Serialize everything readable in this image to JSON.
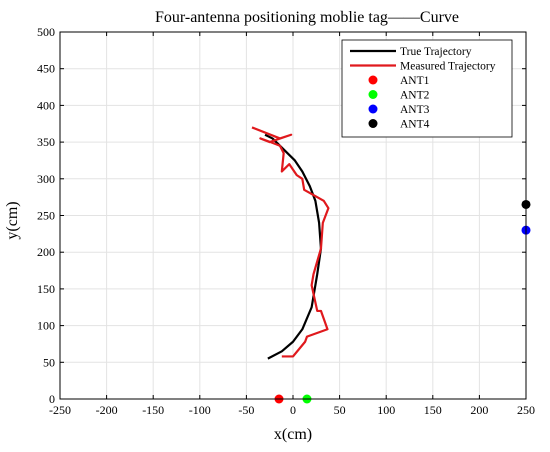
{
  "chart_data": {
    "type": "line",
    "title": "Four-antenna positioning moblie tag——Curve",
    "xlabel": "x(cm)",
    "ylabel": "y(cm)",
    "xlim": [
      -250,
      250
    ],
    "ylim": [
      0,
      500
    ],
    "x_ticks": [
      -250,
      -200,
      -150,
      -100,
      -50,
      0,
      50,
      100,
      150,
      200,
      250
    ],
    "y_ticks": [
      0,
      50,
      100,
      150,
      200,
      250,
      300,
      350,
      400,
      450,
      500
    ],
    "grid": true,
    "legend_position": "top-right",
    "series": [
      {
        "name": "True Trajectory",
        "color": "#000000",
        "points": [
          [
            -27,
            55
          ],
          [
            -12,
            65
          ],
          [
            0,
            78
          ],
          [
            10,
            95
          ],
          [
            20,
            125
          ],
          [
            26,
            170
          ],
          [
            30,
            205
          ],
          [
            28,
            240
          ],
          [
            24,
            270
          ],
          [
            18,
            290
          ],
          [
            10,
            310
          ],
          [
            2,
            325
          ],
          [
            -10,
            340
          ],
          [
            -22,
            355
          ],
          [
            -30,
            360
          ]
        ]
      },
      {
        "name": "Measured Trajectory",
        "color": "#e0191d",
        "points": [
          [
            -12,
            58
          ],
          [
            0,
            58
          ],
          [
            13,
            78
          ],
          [
            15,
            85
          ],
          [
            37,
            95
          ],
          [
            30,
            120
          ],
          [
            26,
            120
          ],
          [
            20,
            155
          ],
          [
            22,
            170
          ],
          [
            30,
            205
          ],
          [
            32,
            240
          ],
          [
            38,
            260
          ],
          [
            33,
            270
          ],
          [
            12,
            285
          ],
          [
            10,
            300
          ],
          [
            4,
            305
          ],
          [
            -4,
            320
          ],
          [
            -12,
            310
          ],
          [
            -10,
            335
          ],
          [
            -14,
            345
          ],
          [
            -24,
            350
          ],
          [
            -35,
            355
          ],
          [
            -25,
            350
          ],
          [
            -2,
            360
          ],
          [
            -14,
            355
          ],
          [
            -44,
            370
          ]
        ]
      }
    ],
    "antennas": [
      {
        "name": "ANT1",
        "color": "#ff0000",
        "x": -15,
        "y": 0
      },
      {
        "name": "ANT2",
        "color": "#00ff00",
        "x": 15,
        "y": 0
      },
      {
        "name": "ANT3",
        "color": "#0000ff",
        "x": 250,
        "y": 230
      },
      {
        "name": "ANT4",
        "color": "#000000",
        "x": 250,
        "y": 265
      }
    ]
  }
}
